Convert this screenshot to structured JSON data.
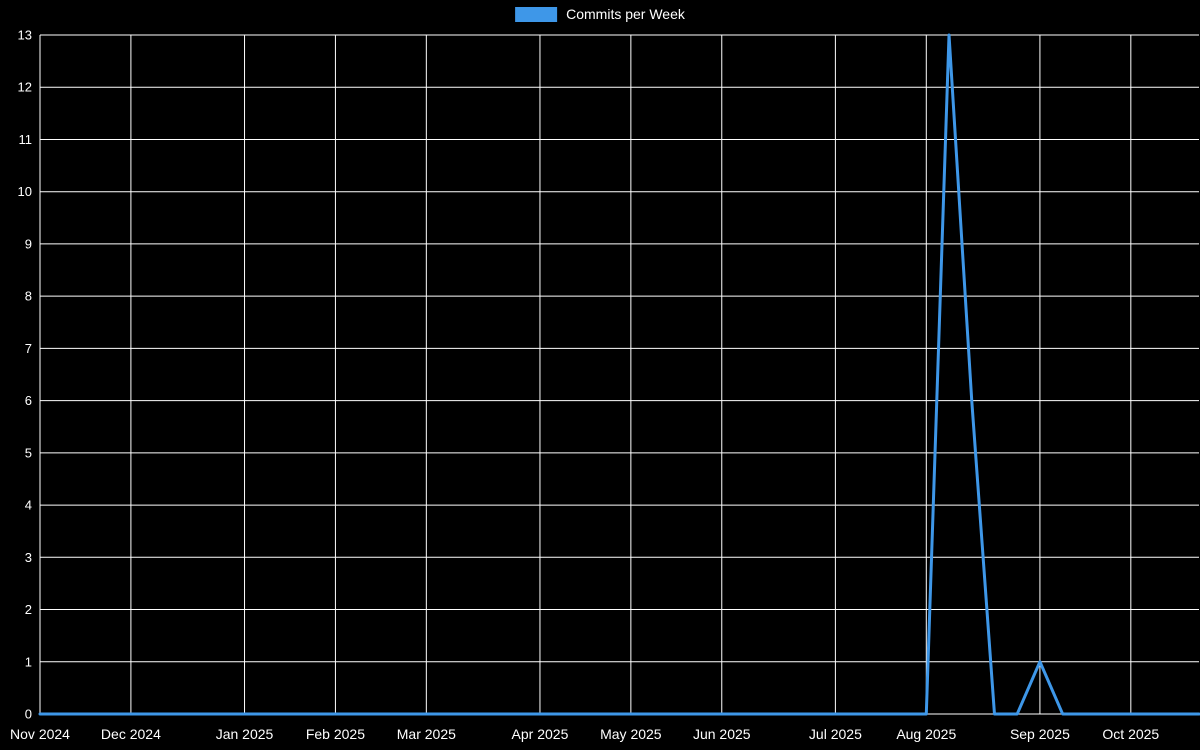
{
  "page": {
    "background": "#000000"
  },
  "legend": {
    "label": "Commits per Week"
  },
  "chart_data": {
    "type": "line",
    "title": "Commits per Week",
    "legend_position": "top-center",
    "background": "#000000",
    "grid": true,
    "grid_color": "#ffffff",
    "text_color": "#ffffff",
    "line_color": "#3e97e8",
    "line_width": 3,
    "ylim": [
      0,
      13
    ],
    "y_tick_step": 1,
    "y_tick_labels": [
      "0",
      "1",
      "2",
      "3",
      "4",
      "5",
      "6",
      "7",
      "8",
      "9",
      "10",
      "11",
      "12",
      "13"
    ],
    "x_unit": "week",
    "x_point_count": 52,
    "x_ticks": [
      {
        "label": "Nov 2024",
        "week_index": 0
      },
      {
        "label": "Dec 2024",
        "week_index": 4
      },
      {
        "label": "Jan 2025",
        "week_index": 9
      },
      {
        "label": "Feb 2025",
        "week_index": 13
      },
      {
        "label": "Mar 2025",
        "week_index": 17
      },
      {
        "label": "Apr 2025",
        "week_index": 22
      },
      {
        "label": "May 2025",
        "week_index": 26
      },
      {
        "label": "Jun 2025",
        "week_index": 30
      },
      {
        "label": "Jul 2025",
        "week_index": 35
      },
      {
        "label": "Aug 2025",
        "week_index": 39
      },
      {
        "label": "Sep 2025",
        "week_index": 44
      },
      {
        "label": "Oct 2025",
        "week_index": 48
      }
    ],
    "series": [
      {
        "name": "Commits per Week",
        "color": "#3e97e8",
        "values": [
          0,
          0,
          0,
          0,
          0,
          0,
          0,
          0,
          0,
          0,
          0,
          0,
          0,
          0,
          0,
          0,
          0,
          0,
          0,
          0,
          0,
          0,
          0,
          0,
          0,
          0,
          0,
          0,
          0,
          0,
          0,
          0,
          0,
          0,
          0,
          0,
          0,
          0,
          0,
          0,
          13,
          6,
          0,
          0,
          1,
          0,
          0,
          0,
          0,
          0,
          0,
          0
        ]
      }
    ]
  }
}
